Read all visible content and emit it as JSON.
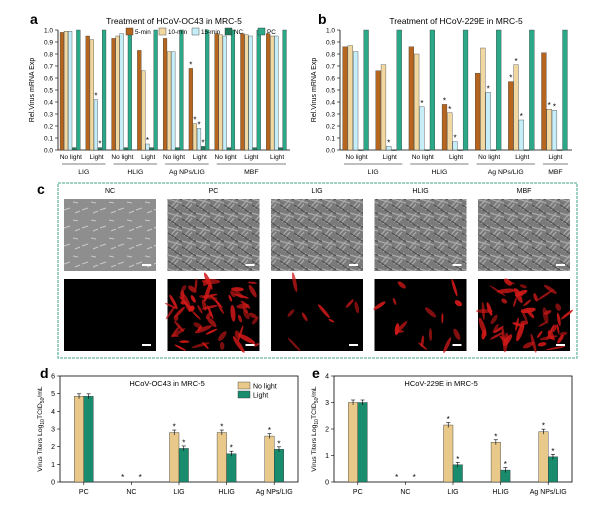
{
  "colors": {
    "c5": "#b5651d",
    "c10": "#f0d8a0",
    "c15": "#c5eef8",
    "nc": "#1f7a5c",
    "pc": "#2ba888",
    "nolight": "#e8c98a",
    "light": "#1a8c6e",
    "frame": "#6ab7a4"
  },
  "panels": {
    "a": "a",
    "b": "b",
    "c": "c",
    "d": "d",
    "e": "e"
  },
  "scalebar_note": "",
  "chart_data": [
    {
      "type": "bar",
      "panel": "a",
      "title": "Treatment of HCoV-OC43 in MRC-5",
      "ylabel": "Rel.Virus mRNA Exp",
      "ylim": [
        0,
        1.0
      ],
      "yticks": [
        "0.0",
        "0.1",
        "0.2",
        "0.3",
        "0.4",
        "0.5",
        "0.6",
        "0.7",
        "0.8",
        "0.9",
        "1.0"
      ],
      "series_names": [
        "5-min",
        "10-min",
        "15-min",
        "NC",
        "PC"
      ],
      "categories": [
        "No light",
        "Light",
        "No light",
        "Light",
        "No light",
        "Light",
        "No light",
        "Light",
        "Light"
      ],
      "groups": [
        {
          "label": "LIG",
          "span": [
            0,
            1
          ]
        },
        {
          "label": "HLIG",
          "span": [
            2,
            3
          ]
        },
        {
          "label": "Ag NPs/LIG",
          "span": [
            4,
            5
          ]
        },
        {
          "label": "MBF",
          "span": [
            6,
            8
          ]
        }
      ],
      "values": [
        [
          0.98,
          0.99,
          0.99,
          0.02,
          1.0
        ],
        [
          0.95,
          0.92,
          0.42,
          0.02,
          1.0
        ],
        [
          0.93,
          0.95,
          0.97,
          0.02,
          1.0
        ],
        [
          0.83,
          0.66,
          0.05,
          0.02,
          1.0
        ],
        [
          0.93,
          0.82,
          0.82,
          0.02,
          1.0
        ],
        [
          0.68,
          0.22,
          0.18,
          0.03,
          1.0
        ],
        [
          0.97,
          0.96,
          0.95,
          0.02,
          1.0
        ],
        [
          0.97,
          0.96,
          0.95,
          0.02,
          1.0
        ],
        [
          0.97,
          0.95,
          0.95,
          0.02,
          1.0
        ]
      ],
      "stars": [
        [
          1,
          2
        ],
        [
          3,
          2
        ],
        [
          5,
          0
        ],
        [
          5,
          1
        ],
        [
          5,
          2
        ],
        [
          1,
          3
        ],
        [
          5,
          3
        ]
      ]
    },
    {
      "type": "bar",
      "panel": "b",
      "title": "Treatment of HCoV-229E in MRC-5",
      "ylabel": "Rel.Virus mRNA Exp",
      "ylim": [
        0,
        1.0
      ],
      "yticks": [
        "0.0",
        "0.1",
        "0.2",
        "0.3",
        "0.4",
        "0.5",
        "0.6",
        "0.7",
        "0.8",
        "0.9",
        "1.0"
      ],
      "categories": [
        "No light",
        "Light",
        "No light",
        "Light",
        "No light",
        "Light",
        "Light"
      ],
      "groups": [
        {
          "label": "LIG",
          "span": [
            0,
            1
          ]
        },
        {
          "label": "HLIG",
          "span": [
            2,
            3
          ]
        },
        {
          "label": "Ag NPs/LIG",
          "span": [
            4,
            5
          ]
        },
        {
          "label": "MBF",
          "span": [
            6,
            6
          ]
        }
      ],
      "values": [
        [
          0.86,
          0.87,
          0.82,
          0.0,
          1.0
        ],
        [
          0.66,
          0.71,
          0.03,
          0.0,
          1.0
        ],
        [
          0.86,
          0.8,
          0.36,
          0.0,
          1.0
        ],
        [
          0.38,
          0.31,
          0.07,
          0.0,
          1.0
        ],
        [
          0.64,
          0.85,
          0.48,
          0.0,
          1.0
        ],
        [
          0.57,
          0.71,
          0.25,
          0.0,
          1.0
        ],
        [
          0.81,
          0.34,
          0.33,
          0.0,
          1.0
        ]
      ],
      "stars": [
        [
          1,
          2
        ],
        [
          2,
          2
        ],
        [
          3,
          0
        ],
        [
          3,
          1
        ],
        [
          3,
          2
        ],
        [
          4,
          2
        ],
        [
          5,
          0
        ],
        [
          5,
          1
        ],
        [
          5,
          2
        ],
        [
          6,
          1
        ],
        [
          6,
          2
        ]
      ]
    },
    {
      "type": "bar",
      "panel": "d",
      "title": "HCoV-OC43 in MRC-5",
      "ylabel_main": "Virus Titers Log",
      "ylabel_sub": "10",
      "ylabel_mid": "TCID",
      "ylabel_sub2": "50",
      "ylabel_end": "/mL",
      "ylim": [
        0,
        6
      ],
      "yticks": [
        "0",
        "1",
        "2",
        "3",
        "4",
        "5",
        "6"
      ],
      "series_names": [
        "No light",
        "Light"
      ],
      "categories": [
        "PC",
        "NC",
        "LIG",
        "HLIG",
        "Ag NPs/LIG"
      ],
      "values": [
        [
          4.85,
          4.85
        ],
        [
          0,
          0
        ],
        [
          2.8,
          1.9
        ],
        [
          2.8,
          1.6
        ],
        [
          2.6,
          1.85
        ]
      ],
      "stars": [
        [
          1,
          0
        ],
        [
          1,
          1
        ],
        [
          2,
          0
        ],
        [
          2,
          1
        ],
        [
          3,
          0
        ],
        [
          3,
          1
        ],
        [
          4,
          0
        ],
        [
          4,
          1
        ]
      ]
    },
    {
      "type": "bar",
      "panel": "e",
      "title": "HCoV-229E in MRC-5",
      "ylabel_main": "Virus Titers Log",
      "ylabel_sub": "10",
      "ylabel_mid": "TCID",
      "ylabel_sub2": "50",
      "ylabel_end": "/mL",
      "ylim": [
        0,
        4
      ],
      "yticks": [
        "0",
        "1",
        "2",
        "3",
        "4"
      ],
      "categories": [
        "PC",
        "NC",
        "LIG",
        "HLIG",
        "Ag NPs/LIG"
      ],
      "values": [
        [
          3.0,
          3.0
        ],
        [
          0,
          0
        ],
        [
          2.15,
          0.65
        ],
        [
          1.5,
          0.45
        ],
        [
          1.9,
          0.95
        ]
      ],
      "stars": [
        [
          1,
          0
        ],
        [
          1,
          1
        ],
        [
          2,
          0
        ],
        [
          2,
          1
        ],
        [
          3,
          0
        ],
        [
          3,
          1
        ],
        [
          4,
          0
        ],
        [
          4,
          1
        ]
      ]
    }
  ],
  "micrographs": {
    "labels": [
      "NC",
      "PC",
      "LIG",
      "HLIG",
      "MBF"
    ],
    "red_intensity": [
      0.0,
      0.85,
      0.05,
      0.15,
      0.7
    ]
  }
}
